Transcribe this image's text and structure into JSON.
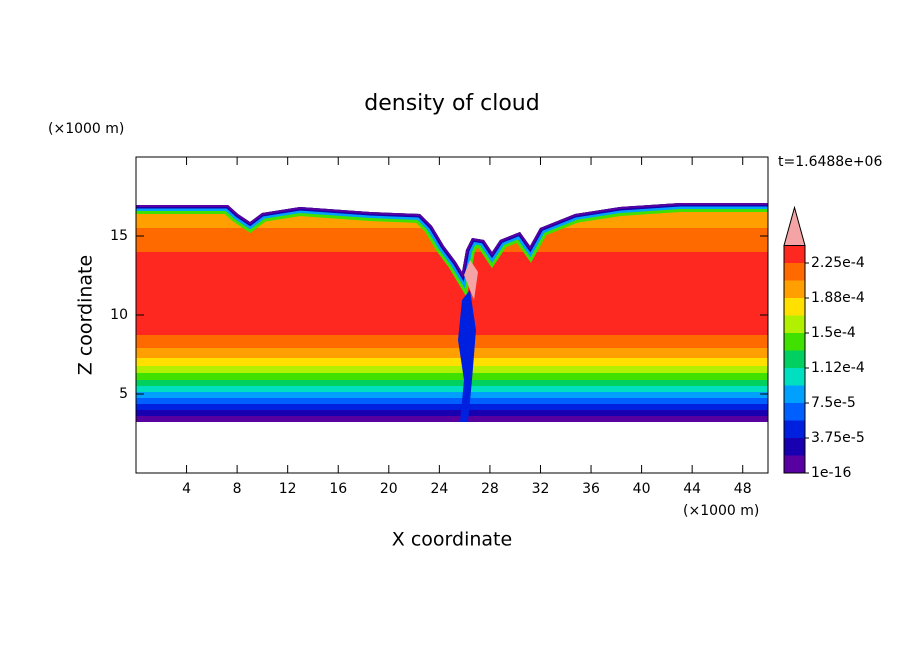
{
  "chart_data": {
    "type": "contour",
    "title": "density of cloud",
    "x_label": "X coordinate",
    "y_label": "Z coordinate",
    "x_unit": "(×1000 m)",
    "y_unit": "(×1000 m)",
    "time_label": "t=1.6488e+06",
    "xlim": [
      0,
      50
    ],
    "ylim": [
      0,
      20
    ],
    "xticks": [
      4,
      8,
      12,
      16,
      20,
      24,
      28,
      32,
      36,
      40,
      44,
      48
    ],
    "yticks": [
      5,
      10,
      15
    ],
    "colorbar": {
      "levels": [
        1e-16,
        1.875e-05,
        3.75e-05,
        5.625e-05,
        7.5e-05,
        9.375e-05,
        0.0001125,
        0.00013125,
        0.00015,
        0.00016875,
        0.0001875,
        0.00020625,
        0.000225,
        0.00024375
      ],
      "colors": [
        "#5800a0",
        "#1800b0",
        "#0020e0",
        "#0060ff",
        "#00a0ff",
        "#00e0c0",
        "#00d060",
        "#40e000",
        "#b0f000",
        "#ffe000",
        "#ffa000",
        "#ff6a00",
        "#ff2820"
      ],
      "over_color": "#f4a4a4",
      "ticks": [
        {
          "value": 1e-16,
          "label": "1e-16"
        },
        {
          "value": 3.75e-05,
          "label": "3.75e-5"
        },
        {
          "value": 7.5e-05,
          "label": "7.5e-5"
        },
        {
          "value": 0.0001125,
          "label": "1.12e-4"
        },
        {
          "value": 0.00015,
          "label": "1.5e-4"
        },
        {
          "value": 0.0001875,
          "label": "1.88e-4"
        },
        {
          "value": 0.000225,
          "label": "2.25e-4"
        }
      ]
    }
  }
}
